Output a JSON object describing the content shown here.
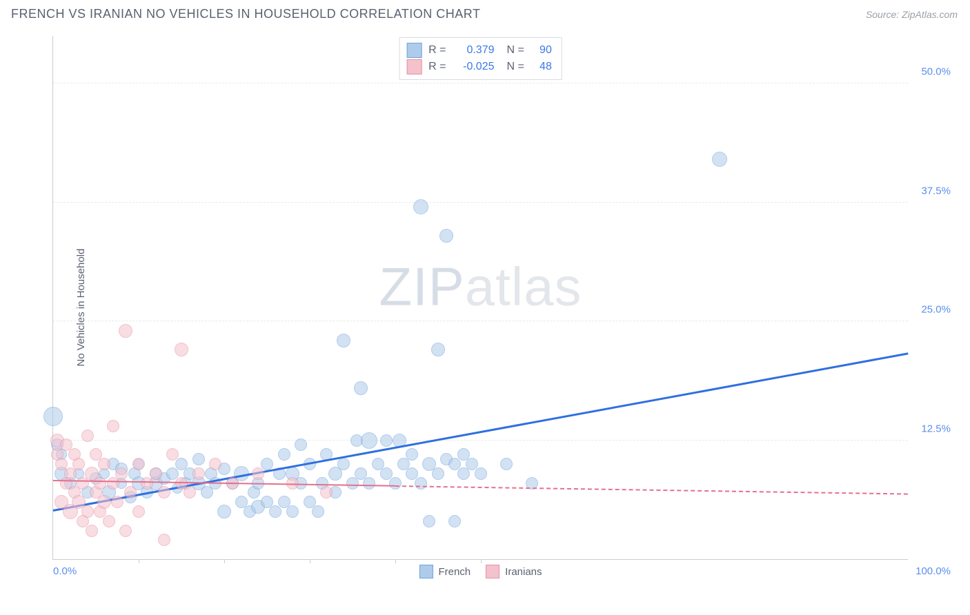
{
  "header": {
    "title": "FRENCH VS IRANIAN NO VEHICLES IN HOUSEHOLD CORRELATION CHART",
    "source": "Source: ZipAtlas.com"
  },
  "ylabel": "No Vehicles in Household",
  "watermark": {
    "bold": "ZIP",
    "light": "atlas"
  },
  "chart": {
    "type": "scatter",
    "xlim": [
      0,
      100
    ],
    "ylim": [
      0,
      55
    ],
    "xlabel_min": "0.0%",
    "xlabel_max": "100.0%",
    "yticks": [
      {
        "v": 12.5,
        "label": "12.5%"
      },
      {
        "v": 25.0,
        "label": "25.0%"
      },
      {
        "v": 37.5,
        "label": "37.5%"
      },
      {
        "v": 50.0,
        "label": "50.0%"
      }
    ],
    "xticks_minor": [
      10,
      20,
      30,
      40,
      50
    ],
    "background_color": "#ffffff",
    "grid_color": "#e6e8eb",
    "axis_color": "#c8ccd2",
    "series": [
      {
        "name": "French",
        "fill": "#aecbeb",
        "stroke": "#6fa3dd",
        "fill_opacity": 0.55,
        "marker_radius": 9,
        "trend": {
          "x1": 0,
          "y1": 5.0,
          "x2": 100,
          "y2": 21.5,
          "solid_until_x": 100,
          "color": "#2f6fe0",
          "width": 3
        },
        "points": [
          {
            "x": 0,
            "y": 15,
            "r": 14
          },
          {
            "x": 0.5,
            "y": 12,
            "r": 9
          },
          {
            "x": 1,
            "y": 9,
            "r": 10
          },
          {
            "x": 1,
            "y": 11,
            "r": 8
          },
          {
            "x": 2,
            "y": 8,
            "r": 9
          },
          {
            "x": 3,
            "y": 9,
            "r": 8
          },
          {
            "x": 4,
            "y": 7,
            "r": 9
          },
          {
            "x": 5,
            "y": 8.5,
            "r": 9
          },
          {
            "x": 6,
            "y": 9,
            "r": 8
          },
          {
            "x": 6.5,
            "y": 7,
            "r": 10
          },
          {
            "x": 7,
            "y": 10,
            "r": 9
          },
          {
            "x": 8,
            "y": 8,
            "r": 8
          },
          {
            "x": 8,
            "y": 9.5,
            "r": 9
          },
          {
            "x": 9,
            "y": 6.5,
            "r": 9
          },
          {
            "x": 9.5,
            "y": 9,
            "r": 9
          },
          {
            "x": 10,
            "y": 8,
            "r": 10
          },
          {
            "x": 10,
            "y": 10,
            "r": 8
          },
          {
            "x": 11,
            "y": 7,
            "r": 9
          },
          {
            "x": 12,
            "y": 9,
            "r": 9
          },
          {
            "x": 12,
            "y": 8,
            "r": 10
          },
          {
            "x": 13,
            "y": 8.5,
            "r": 9
          },
          {
            "x": 14,
            "y": 9,
            "r": 9
          },
          {
            "x": 14.5,
            "y": 7.5,
            "r": 8
          },
          {
            "x": 15,
            "y": 10,
            "r": 9
          },
          {
            "x": 15.5,
            "y": 8,
            "r": 9
          },
          {
            "x": 16,
            "y": 9,
            "r": 9
          },
          {
            "x": 17,
            "y": 8,
            "r": 10
          },
          {
            "x": 17,
            "y": 10.5,
            "r": 9
          },
          {
            "x": 18,
            "y": 7,
            "r": 9
          },
          {
            "x": 18.5,
            "y": 9,
            "r": 9
          },
          {
            "x": 19,
            "y": 8,
            "r": 9
          },
          {
            "x": 20,
            "y": 9.5,
            "r": 9
          },
          {
            "x": 20,
            "y": 5,
            "r": 10
          },
          {
            "x": 21,
            "y": 8,
            "r": 9
          },
          {
            "x": 22,
            "y": 6,
            "r": 9
          },
          {
            "x": 22,
            "y": 9,
            "r": 11
          },
          {
            "x": 23,
            "y": 5,
            "r": 9
          },
          {
            "x": 23.5,
            "y": 7,
            "r": 9
          },
          {
            "x": 24,
            "y": 5.5,
            "r": 10
          },
          {
            "x": 24,
            "y": 8,
            "r": 9
          },
          {
            "x": 25,
            "y": 6,
            "r": 9
          },
          {
            "x": 25,
            "y": 10,
            "r": 9
          },
          {
            "x": 26,
            "y": 5,
            "r": 9
          },
          {
            "x": 26.5,
            "y": 9,
            "r": 9
          },
          {
            "x": 27,
            "y": 11,
            "r": 9
          },
          {
            "x": 27,
            "y": 6,
            "r": 9
          },
          {
            "x": 28,
            "y": 5,
            "r": 9
          },
          {
            "x": 28,
            "y": 9,
            "r": 10
          },
          {
            "x": 29,
            "y": 8,
            "r": 9
          },
          {
            "x": 29,
            "y": 12,
            "r": 9
          },
          {
            "x": 30,
            "y": 6,
            "r": 9
          },
          {
            "x": 30,
            "y": 10,
            "r": 9
          },
          {
            "x": 31,
            "y": 5,
            "r": 9
          },
          {
            "x": 31.5,
            "y": 8,
            "r": 9
          },
          {
            "x": 32,
            "y": 11,
            "r": 9
          },
          {
            "x": 33,
            "y": 9,
            "r": 10
          },
          {
            "x": 33,
            "y": 7,
            "r": 9
          },
          {
            "x": 34,
            "y": 23,
            "r": 10
          },
          {
            "x": 34,
            "y": 10,
            "r": 9
          },
          {
            "x": 35,
            "y": 8,
            "r": 9
          },
          {
            "x": 35.5,
            "y": 12.5,
            "r": 9
          },
          {
            "x": 36,
            "y": 9,
            "r": 9
          },
          {
            "x": 36,
            "y": 18,
            "r": 10
          },
          {
            "x": 37,
            "y": 8,
            "r": 9
          },
          {
            "x": 37,
            "y": 12.5,
            "r": 12
          },
          {
            "x": 38,
            "y": 10,
            "r": 9
          },
          {
            "x": 39,
            "y": 9,
            "r": 9
          },
          {
            "x": 39,
            "y": 12.5,
            "r": 9
          },
          {
            "x": 40,
            "y": 8,
            "r": 9
          },
          {
            "x": 40.5,
            "y": 12.5,
            "r": 10
          },
          {
            "x": 41,
            "y": 10,
            "r": 9
          },
          {
            "x": 42,
            "y": 9,
            "r": 9
          },
          {
            "x": 42,
            "y": 11,
            "r": 9
          },
          {
            "x": 43,
            "y": 8,
            "r": 9
          },
          {
            "x": 43,
            "y": 37,
            "r": 11
          },
          {
            "x": 44,
            "y": 10,
            "r": 10
          },
          {
            "x": 44,
            "y": 4,
            "r": 9
          },
          {
            "x": 45,
            "y": 22,
            "r": 10
          },
          {
            "x": 45,
            "y": 9,
            "r": 9
          },
          {
            "x": 46,
            "y": 10.5,
            "r": 9
          },
          {
            "x": 46,
            "y": 34,
            "r": 10
          },
          {
            "x": 47,
            "y": 4,
            "r": 9
          },
          {
            "x": 47,
            "y": 10,
            "r": 9
          },
          {
            "x": 48,
            "y": 11,
            "r": 9
          },
          {
            "x": 48,
            "y": 9,
            "r": 9
          },
          {
            "x": 49,
            "y": 10,
            "r": 9
          },
          {
            "x": 50,
            "y": 9,
            "r": 9
          },
          {
            "x": 53,
            "y": 10,
            "r": 9
          },
          {
            "x": 56,
            "y": 8,
            "r": 9
          },
          {
            "x": 78,
            "y": 42,
            "r": 11
          }
        ]
      },
      {
        "name": "Iranians",
        "fill": "#f4c2cd",
        "stroke": "#e88fa3",
        "fill_opacity": 0.55,
        "marker_radius": 9,
        "trend": {
          "x1": 0,
          "y1": 8.2,
          "x2": 100,
          "y2": 6.8,
          "solid_until_x": 40,
          "color": "#e66f8c",
          "width": 2
        },
        "points": [
          {
            "x": 0.5,
            "y": 11,
            "r": 9
          },
          {
            "x": 0.5,
            "y": 12.5,
            "r": 10
          },
          {
            "x": 1,
            "y": 10,
            "r": 9
          },
          {
            "x": 1,
            "y": 6,
            "r": 10
          },
          {
            "x": 1.5,
            "y": 8,
            "r": 9
          },
          {
            "x": 1.5,
            "y": 12,
            "r": 9
          },
          {
            "x": 2,
            "y": 5,
            "r": 11
          },
          {
            "x": 2,
            "y": 9,
            "r": 9
          },
          {
            "x": 2.5,
            "y": 7,
            "r": 9
          },
          {
            "x": 2.5,
            "y": 11,
            "r": 9
          },
          {
            "x": 3,
            "y": 6,
            "r": 10
          },
          {
            "x": 3,
            "y": 10,
            "r": 9
          },
          {
            "x": 3.5,
            "y": 4,
            "r": 9
          },
          {
            "x": 3.5,
            "y": 8,
            "r": 9
          },
          {
            "x": 4,
            "y": 13,
            "r": 9
          },
          {
            "x": 4,
            "y": 5,
            "r": 9
          },
          {
            "x": 4.5,
            "y": 9,
            "r": 10
          },
          {
            "x": 4.5,
            "y": 3,
            "r": 9
          },
          {
            "x": 5,
            "y": 7,
            "r": 9
          },
          {
            "x": 5,
            "y": 11,
            "r": 9
          },
          {
            "x": 5.5,
            "y": 5,
            "r": 9
          },
          {
            "x": 5.5,
            "y": 8,
            "r": 9
          },
          {
            "x": 6,
            "y": 6,
            "r": 10
          },
          {
            "x": 6,
            "y": 10,
            "r": 9
          },
          {
            "x": 6.5,
            "y": 4,
            "r": 9
          },
          {
            "x": 7,
            "y": 14,
            "r": 9
          },
          {
            "x": 7,
            "y": 8,
            "r": 9
          },
          {
            "x": 7.5,
            "y": 6,
            "r": 9
          },
          {
            "x": 8,
            "y": 9,
            "r": 9
          },
          {
            "x": 8.5,
            "y": 3,
            "r": 9
          },
          {
            "x": 8.5,
            "y": 24,
            "r": 10
          },
          {
            "x": 9,
            "y": 7,
            "r": 9
          },
          {
            "x": 10,
            "y": 5,
            "r": 9
          },
          {
            "x": 10,
            "y": 10,
            "r": 9
          },
          {
            "x": 11,
            "y": 8,
            "r": 9
          },
          {
            "x": 12,
            "y": 9,
            "r": 9
          },
          {
            "x": 13,
            "y": 7,
            "r": 9
          },
          {
            "x": 13,
            "y": 2,
            "r": 9
          },
          {
            "x": 14,
            "y": 11,
            "r": 9
          },
          {
            "x": 15,
            "y": 22,
            "r": 10
          },
          {
            "x": 15,
            "y": 8,
            "r": 9
          },
          {
            "x": 16,
            "y": 7,
            "r": 9
          },
          {
            "x": 17,
            "y": 9,
            "r": 9
          },
          {
            "x": 19,
            "y": 10,
            "r": 9
          },
          {
            "x": 21,
            "y": 8,
            "r": 9
          },
          {
            "x": 24,
            "y": 9,
            "r": 9
          },
          {
            "x": 28,
            "y": 8,
            "r": 9
          },
          {
            "x": 32,
            "y": 7,
            "r": 9
          }
        ]
      }
    ],
    "corr_legend": [
      {
        "swatch_fill": "#aecbeb",
        "swatch_stroke": "#6fa3dd",
        "r_label": "R =",
        "r": "0.379",
        "n_label": "N =",
        "n": "90"
      },
      {
        "swatch_fill": "#f4c2cd",
        "swatch_stroke": "#e88fa3",
        "r_label": "R =",
        "r": "-0.025",
        "n_label": "N =",
        "n": "48"
      }
    ],
    "bottom_legend": [
      {
        "swatch_fill": "#aecbeb",
        "swatch_stroke": "#6fa3dd",
        "label": "French"
      },
      {
        "swatch_fill": "#f4c2cd",
        "swatch_stroke": "#e88fa3",
        "label": "Iranians"
      }
    ]
  }
}
